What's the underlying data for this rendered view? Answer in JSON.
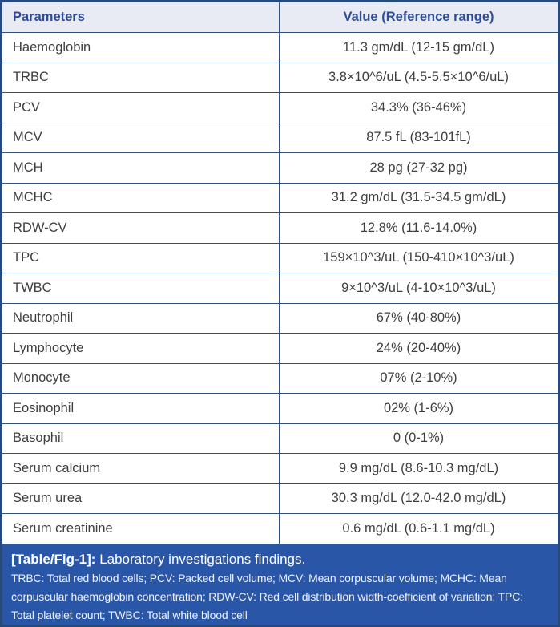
{
  "table": {
    "columns": {
      "parameters": "Parameters",
      "value": "Value (Reference range)"
    },
    "rows": [
      {
        "parameter": "Haemoglobin",
        "value": "11.3 gm/dL (12-15 gm/dL)"
      },
      {
        "parameter": "TRBC",
        "value": "3.8×10^6/uL (4.5-5.5×10^6/uL)"
      },
      {
        "parameter": "PCV",
        "value": "34.3% (36-46%)"
      },
      {
        "parameter": "MCV",
        "value": "87.5 fL (83-101fL)"
      },
      {
        "parameter": "MCH",
        "value": "28 pg (27-32 pg)"
      },
      {
        "parameter": "MCHC",
        "value": "31.2 gm/dL (31.5-34.5 gm/dL)"
      },
      {
        "parameter": "RDW-CV",
        "value": "12.8% (11.6-14.0%)"
      },
      {
        "parameter": "TPC",
        "value": "159×10^3/uL (150-410×10^3/uL)"
      },
      {
        "parameter": "TWBC",
        "value": "9×10^3/uL (4-10×10^3/uL)"
      },
      {
        "parameter": "Neutrophil",
        "value": "67% (40-80%)"
      },
      {
        "parameter": "Lymphocyte",
        "value": "24% (20-40%)"
      },
      {
        "parameter": "Monocyte",
        "value": "07% (2-10%)"
      },
      {
        "parameter": "Eosinophil",
        "value": "02% (1-6%)"
      },
      {
        "parameter": "Basophil",
        "value": "0 (0-1%)"
      },
      {
        "parameter": "Serum calcium",
        "value": "9.9 mg/dL (8.6-10.3 mg/dL)"
      },
      {
        "parameter": "Serum urea",
        "value": "30.3 mg/dL (12.0-42.0 mg/dL)"
      },
      {
        "parameter": "Serum creatinine",
        "value": "0.6 mg/dL (0.6-1.1 mg/dL)"
      }
    ]
  },
  "caption": {
    "label": "[Table/Fig-1]:",
    "title": "Laboratory investigations findings.",
    "footnote": "TRBC: Total red blood cells; PCV: Packed cell volume; MCV: Mean corpuscular volume; MCHC: Mean corpuscular haemoglobin concentration; RDW-CV: Red cell distribution width-coefficient of variation; TPC: Total platelet count; TWBC: Total white blood cell"
  },
  "colors": {
    "header_bg": "#e9ebf4",
    "header_text": "#2c4d9c",
    "outer_border": "#27497b",
    "grid_line": "#30507c",
    "cell_text": "#3f3f3f",
    "caption_bg": "#2a56a7",
    "caption_text": "#ffffff"
  }
}
